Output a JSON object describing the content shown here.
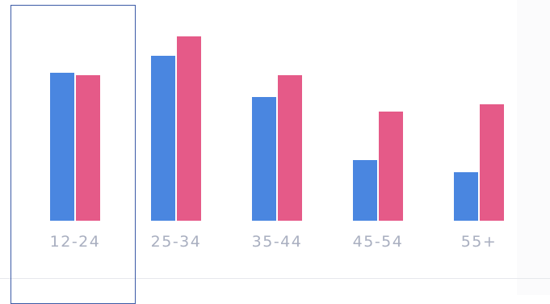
{
  "chart_data": {
    "type": "bar",
    "categories": [
      "12-24",
      "25-34",
      "35-44",
      "45-54",
      "55+"
    ],
    "series": [
      {
        "values": [
          61,
          68,
          51,
          25,
          20
        ],
        "color": "#4a86e0"
      },
      {
        "values": [
          60,
          76,
          60,
          45,
          48
        ],
        "color": "#e55a88"
      }
    ],
    "title": "",
    "xlabel": "",
    "ylabel": "",
    "ylim": [
      0,
      80
    ],
    "grid": false,
    "legend": "none",
    "selected_category": "12-24"
  }
}
